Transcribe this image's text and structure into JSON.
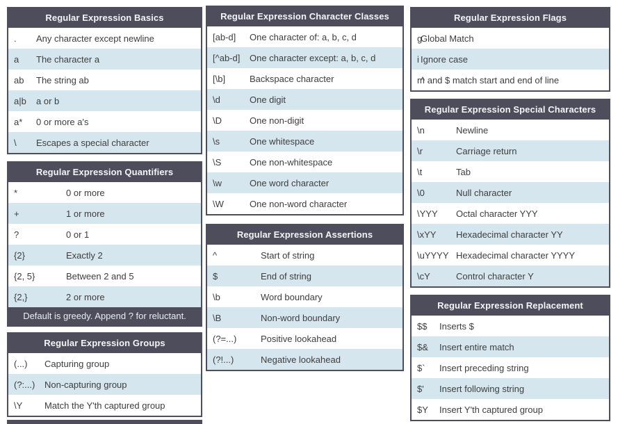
{
  "colors": {
    "header_bg": "#4d4d5c",
    "row_alt_bg": "#d6e6ee",
    "row_bg": "#ffffff",
    "header_text": "#f2f5f8",
    "row_text": "#3d3d3d",
    "page_bg": "#ffffff"
  },
  "columns": [
    {
      "tables": [
        {
          "id": "basics",
          "title": "Regular Expression Basics",
          "rows": [
            {
              "key": ".",
              "desc": "Any character except newline"
            },
            {
              "key": "a",
              "desc": "The character a"
            },
            {
              "key": "ab",
              "desc": "The string ab"
            },
            {
              "key": "a|b",
              "desc": "a or b"
            },
            {
              "key": "a*",
              "desc": "0 or more a's"
            },
            {
              "key": "\\",
              "desc": "Escapes a special character"
            }
          ]
        },
        {
          "id": "quantifiers",
          "title": "Regular Expression Quantifiers",
          "rows": [
            {
              "key": "*",
              "desc": "0 or more"
            },
            {
              "key": "+",
              "desc": "1 or more"
            },
            {
              "key": "?",
              "desc": "0 or 1"
            },
            {
              "key": "{2}",
              "desc": "Exactly 2"
            },
            {
              "key": "{2, 5}",
              "desc": "Between 2 and 5"
            },
            {
              "key": "{2,}",
              "desc": "2 or more"
            }
          ],
          "footer": "Default is greedy. Append ? for reluctant."
        },
        {
          "id": "groups",
          "title": "Regular Expression Groups",
          "rows": [
            {
              "key": "(...)",
              "desc": "Capturing group"
            },
            {
              "key": "(?:...)",
              "desc": "Non-capturing group"
            },
            {
              "key": "\\Y",
              "desc": "Match the Y'th captured group"
            }
          ]
        },
        {
          "id": "partial-table",
          "partial": true
        }
      ]
    },
    {
      "tables": [
        {
          "id": "character-classes",
          "title": "Regular Expression Character Classes",
          "rows": [
            {
              "key": "[ab-d]",
              "desc": "One character of: a, b, c, d"
            },
            {
              "key": "[^ab-d]",
              "desc": "One character except: a, b, c, d"
            },
            {
              "key": "[\\b]",
              "desc": "Backspace character"
            },
            {
              "key": "\\d",
              "desc": "One digit"
            },
            {
              "key": "\\D",
              "desc": "One non-digit"
            },
            {
              "key": "\\s",
              "desc": "One whitespace"
            },
            {
              "key": "\\S",
              "desc": "One non-whitespace"
            },
            {
              "key": "\\w",
              "desc": "One word character"
            },
            {
              "key": "\\W",
              "desc": "One non-word character"
            }
          ]
        },
        {
          "id": "assertions",
          "title": "Regular Expression Assertions",
          "rows": [
            {
              "key": "^",
              "desc": "Start of string"
            },
            {
              "key": "$",
              "desc": "End of string"
            },
            {
              "key": "\\b",
              "desc": "Word boundary"
            },
            {
              "key": "\\B",
              "desc": "Non-word boundary"
            },
            {
              "key": "(?=...)",
              "desc": "Positive lookahead"
            },
            {
              "key": "(?!...)",
              "desc": "Negative lookahead"
            }
          ]
        }
      ]
    },
    {
      "tables": [
        {
          "id": "flags",
          "title": "Regular Expression Flags",
          "rows": [
            {
              "key": "g",
              "desc": "Global Match"
            },
            {
              "key": "i",
              "desc": "Ignore case"
            },
            {
              "key": "m",
              "desc": "^ and $ match start and end of line"
            }
          ]
        },
        {
          "id": "special-characters",
          "title": "Regular Expression Special Characters",
          "rows": [
            {
              "key": "\\n",
              "desc": "Newline"
            },
            {
              "key": "\\r",
              "desc": "Carriage return"
            },
            {
              "key": "\\t",
              "desc": "Tab"
            },
            {
              "key": "\\0",
              "desc": "Null character"
            },
            {
              "key": "\\YYY",
              "desc": "Octal character YYY"
            },
            {
              "key": "\\xYY",
              "desc": "Hexadecimal character YY"
            },
            {
              "key": "\\uYYYY",
              "desc": "Hexadecimal character YYYY"
            },
            {
              "key": "\\cY",
              "desc": "Control character Y"
            }
          ]
        },
        {
          "id": "replacement",
          "title": "Regular Expression Replacement",
          "rows": [
            {
              "key": "$$",
              "desc": "Inserts $"
            },
            {
              "key": "$&",
              "desc": "Insert entire match"
            },
            {
              "key": "$`",
              "desc": "Insert preceding string"
            },
            {
              "key": "$'",
              "desc": "Insert following string"
            },
            {
              "key": "$Y",
              "desc": "Insert Y'th captured group"
            }
          ]
        }
      ]
    }
  ]
}
